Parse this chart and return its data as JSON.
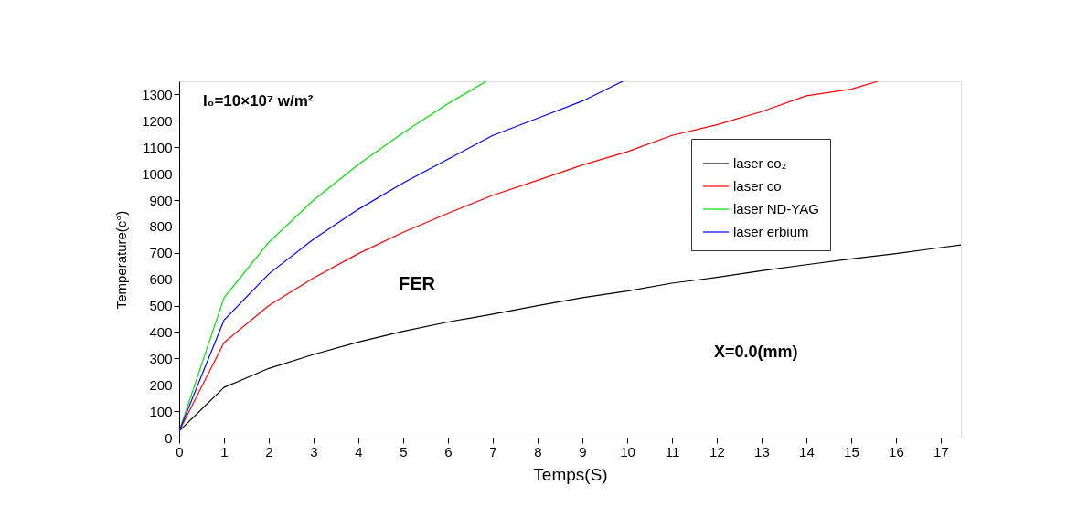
{
  "chart_data": {
    "type": "line",
    "xlabel": "Temps(S)",
    "ylabel": "Temperature(c°)",
    "xlim": [
      0,
      17.45
    ],
    "xticks": [
      0,
      1,
      2,
      3,
      4,
      5,
      6,
      7,
      8,
      9,
      10,
      11,
      12,
      13,
      14,
      15,
      16,
      17
    ],
    "ylim": [
      0,
      1350
    ],
    "yticks": [
      0,
      100,
      200,
      300,
      400,
      500,
      600,
      700,
      800,
      900,
      1000,
      1100,
      1200,
      1300
    ],
    "grid": false,
    "legend": "top right",
    "marker": "none",
    "line_style": "solid",
    "annotations": [
      "I₀=10×10⁷ w/m²",
      "FER",
      "X=0.0(mm)"
    ],
    "series": [
      {
        "name": "laser co₂",
        "color": "#000000",
        "x": [
          0,
          1,
          2,
          3,
          4,
          5,
          6,
          7,
          8,
          9,
          10,
          11,
          12,
          13,
          14,
          15,
          16,
          17,
          17.45
        ],
        "values": [
          25,
          190,
          262,
          315,
          362,
          403,
          438,
          468,
          500,
          530,
          555,
          585,
          607,
          632,
          655,
          677,
          697,
          720,
          730
        ]
      },
      {
        "name": "laser co",
        "color": "#ff0000",
        "x": [
          0,
          1,
          2,
          3,
          4,
          5,
          6,
          7,
          8,
          9,
          10,
          11,
          12,
          13,
          14,
          15,
          15.6
        ],
        "values": [
          25,
          360,
          500,
          605,
          697,
          778,
          850,
          918,
          975,
          1033,
          1083,
          1145,
          1185,
          1235,
          1295,
          1320,
          1350
        ]
      },
      {
        "name": "laser ND-YAG",
        "color": "#00e000",
        "x": [
          0,
          1,
          2,
          3,
          4,
          5,
          6,
          6.85
        ],
        "values": [
          25,
          530,
          740,
          900,
          1035,
          1155,
          1265,
          1350
        ]
      },
      {
        "name": "laser erbium",
        "color": "#0000ff",
        "x": [
          0,
          1,
          2,
          3,
          4,
          5,
          6,
          7,
          8,
          9,
          9.9
        ],
        "values": [
          25,
          445,
          620,
          752,
          865,
          965,
          1055,
          1145,
          1210,
          1275,
          1350
        ]
      }
    ]
  }
}
